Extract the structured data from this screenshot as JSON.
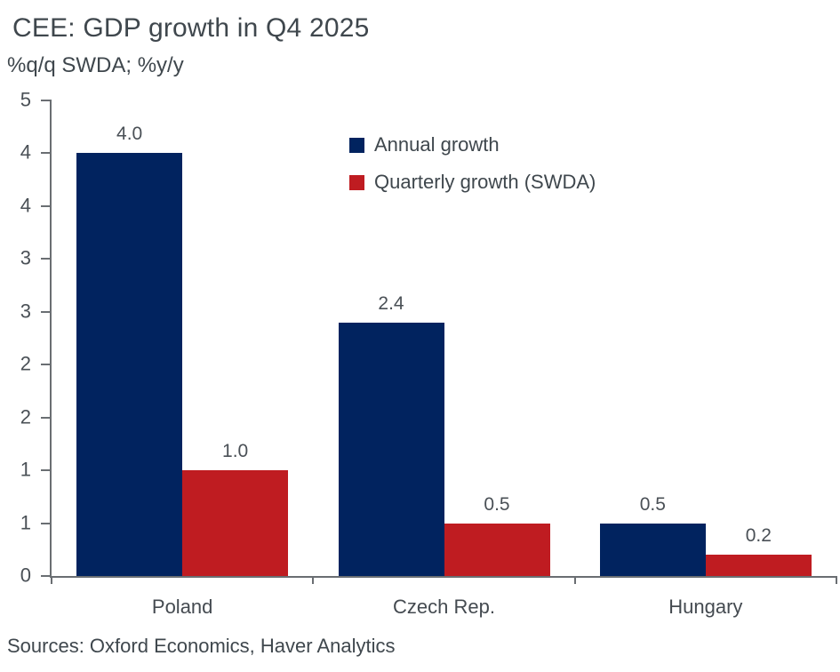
{
  "title": "CEE: GDP growth in Q4 2025",
  "subtitle": "%q/q SWDA; %y/y",
  "source_note": "Sources: Oxford Economics, Haver Analytics",
  "colors": {
    "annual_series": "#01235f",
    "quarterly_series": "#bf1c21",
    "axis": "#6a6e72",
    "title_text": "#3f474d",
    "tick_text": "#4a5056",
    "background": "#ffffff"
  },
  "chart_data": {
    "type": "bar",
    "title": "CEE: GDP growth in Q4 2025",
    "subtitle": "%q/q SWDA; %y/y",
    "categories": [
      "Poland",
      "Czech Rep.",
      "Hungary"
    ],
    "series": [
      {
        "name": "Annual growth",
        "color": "#01235f",
        "values": [
          4.0,
          2.4,
          0.5
        ]
      },
      {
        "name": "Quarterly growth (SWDA)",
        "color": "#bf1c21",
        "values": [
          1.0,
          0.5,
          0.2
        ]
      }
    ],
    "ylim": [
      0,
      4.5
    ],
    "y_tick_step": 0.5,
    "y_tick_labels": [
      "0",
      "1",
      "1",
      "2",
      "2",
      "3",
      "3",
      "4",
      "4",
      "5"
    ],
    "data_labels": true,
    "data_label_decimals": 1,
    "grid": false,
    "legend_position": "inside-top",
    "source": "Sources: Oxford Economics, Haver Analytics"
  }
}
